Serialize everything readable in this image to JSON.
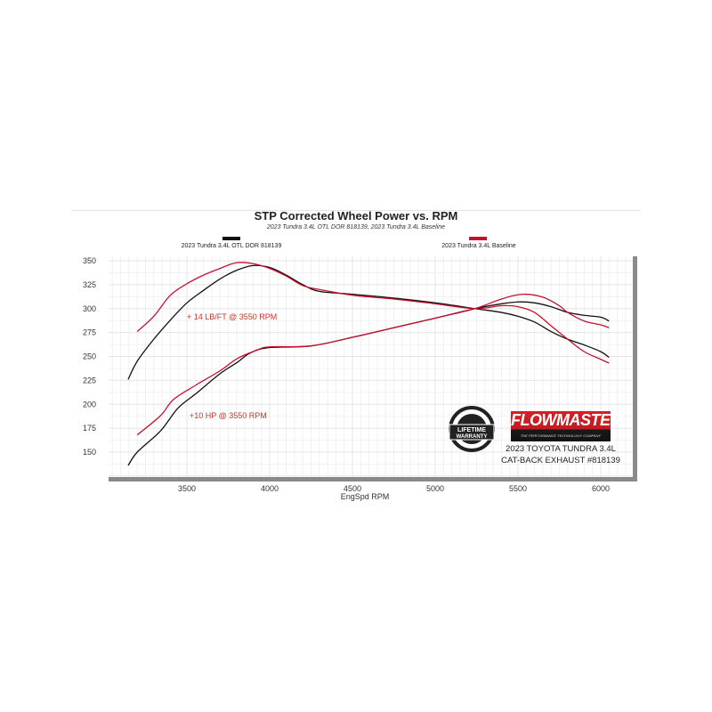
{
  "chart_data": {
    "type": "line",
    "title": "STP Corrected Wheel Power vs. RPM",
    "subtitle": "2023 Tundra 3.4L OTL DOR 818139, 2023 Tundra 3.4L Baseline",
    "xlabel": "EngSpd  RPM",
    "ylabel": "",
    "xlim": [
      3030,
      6200
    ],
    "ylim": [
      122,
      355
    ],
    "x_ticks": [
      "3500",
      "4000",
      "4500",
      "5000",
      "5500",
      "6000"
    ],
    "y_ticks": [
      "350",
      "325",
      "300",
      "275",
      "250",
      "225",
      "200",
      "175",
      "150"
    ],
    "grid": true,
    "legend": [
      {
        "name": "2023 Tundra 3.4L OTL DOR 818139",
        "color": "#111111"
      },
      {
        "name": "2023 Tundra 3.4L Baseline",
        "color": "#c8102e"
      }
    ],
    "annotations": [
      "+ 14 LB/FT @ 3550 RPM",
      "+10 HP @ 3550 RPM"
    ],
    "series": [
      {
        "legend": 0,
        "quantity": "torque",
        "color": "#111111",
        "x": [
          3145,
          3200,
          3300,
          3400,
          3500,
          3600,
          3700,
          3800,
          3900,
          4000,
          4100,
          4200,
          4300,
          4500,
          4750,
          5000,
          5240,
          5400,
          5500,
          5600,
          5700,
          5800,
          5900,
          6000,
          6050
        ],
        "y": [
          226,
          245,
          268,
          288,
          306,
          319,
          331,
          340,
          345,
          343,
          335,
          325,
          318,
          315,
          311,
          306,
          300,
          296,
          292,
          286,
          276,
          268,
          262,
          255,
          249
        ]
      },
      {
        "legend": 1,
        "quantity": "torque",
        "color": "#c8102e",
        "x": [
          3200,
          3300,
          3400,
          3500,
          3600,
          3700,
          3800,
          3900,
          4000,
          4100,
          4200,
          4300,
          4500,
          4750,
          5000,
          5240,
          5400,
          5500,
          5600,
          5700,
          5800,
          5900,
          6000,
          6050
        ],
        "y": [
          276,
          292,
          314,
          326,
          335,
          342,
          348,
          347,
          342,
          334,
          324,
          320,
          314,
          310,
          305,
          300,
          303,
          302,
          296,
          282,
          268,
          255,
          247,
          243
        ]
      },
      {
        "legend": 0,
        "quantity": "hp",
        "color": "#111111",
        "x": [
          3145,
          3200,
          3340,
          3446,
          3554,
          3700,
          3806,
          3876,
          3984,
          4250,
          4500,
          4750,
          5000,
          5240,
          5400,
          5500,
          5600,
          5700,
          5800,
          5900,
          6000,
          6050
        ],
        "y": [
          136,
          150,
          172,
          196,
          211,
          232,
          244,
          253,
          259,
          261,
          270,
          280,
          290,
          300,
          305,
          307,
          306,
          302,
          296,
          293,
          291,
          287
        ]
      },
      {
        "legend": 1,
        "quantity": "hp",
        "color": "#c8102e",
        "x": [
          3200,
          3340,
          3419,
          3554,
          3700,
          3806,
          3930,
          4000,
          4250,
          4500,
          4750,
          5000,
          5240,
          5400,
          5530,
          5650,
          5750,
          5800,
          5900,
          6000,
          6050
        ],
        "y": [
          168,
          188,
          205,
          220,
          235,
          248,
          257,
          260,
          261,
          270,
          280,
          290,
          300,
          310,
          315,
          312,
          303,
          296,
          287,
          283,
          280
        ]
      }
    ]
  },
  "branding": {
    "logo_text": "FLOWMASTER",
    "logo_tagline": "THE PERFORMANCE TECHNOLOGY COMPANY",
    "badge_text": "LIFETIME WARRANTY",
    "product_line1": "2023 TOYOTA TUNDRA 3.4L",
    "product_line2": "CAT-BACK EXHAUST #818139"
  }
}
